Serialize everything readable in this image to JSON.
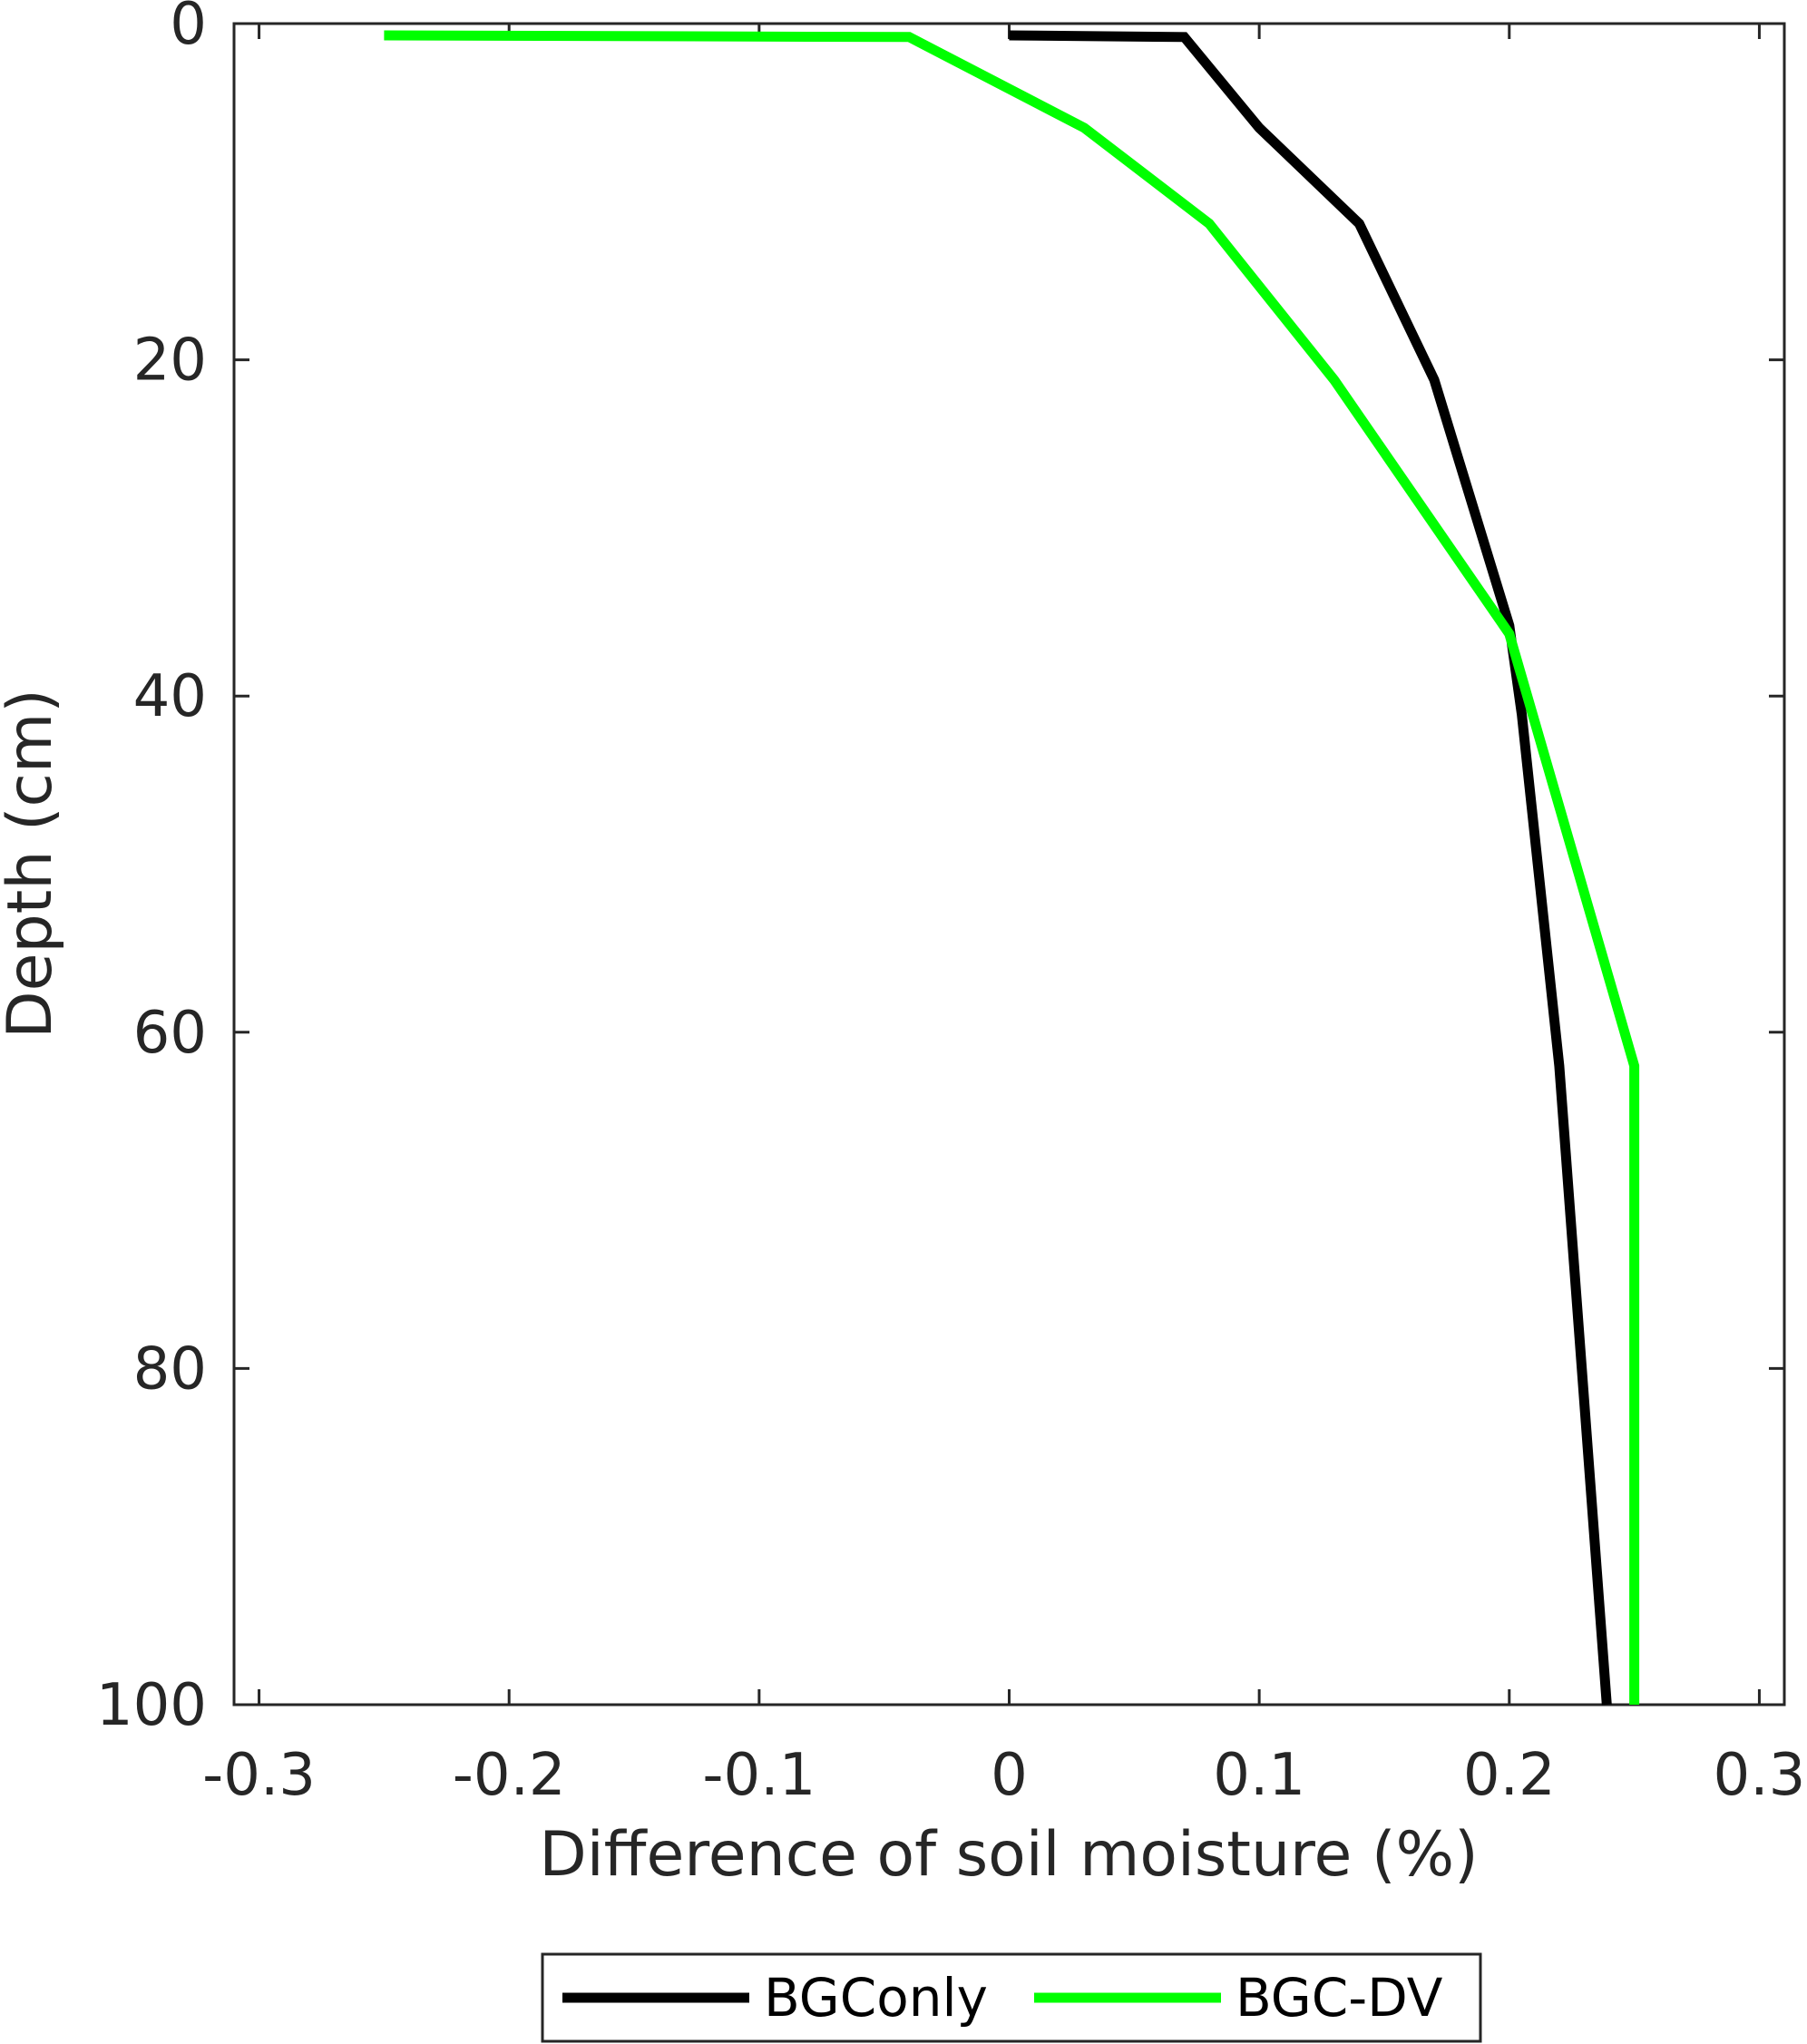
{
  "chart_data": {
    "type": "line",
    "title": "",
    "xlabel": "Difference of soil moisture (%)",
    "ylabel": "Depth (cm)",
    "xlim": [
      -0.31,
      0.31
    ],
    "ylim": [
      0,
      100
    ],
    "y_reversed": true,
    "xticks": [
      "-0.3",
      "-0.2",
      "-0.1",
      "0",
      "0.1",
      "0.2",
      "0.3"
    ],
    "xtick_values": [
      -0.3,
      -0.2,
      -0.1,
      0,
      0.1,
      0.2,
      0.3
    ],
    "yticks": [
      "0",
      "20",
      "40",
      "60",
      "80",
      "100"
    ],
    "ytick_values": [
      0,
      20,
      40,
      60,
      80,
      100
    ],
    "grid": false,
    "legend_position": "bottom-center-outside",
    "series": [
      {
        "name": "BGConly",
        "color": "#000000",
        "points": [
          [
            0.0,
            0.7
          ],
          [
            0.07,
            0.8
          ],
          [
            0.1,
            6.2
          ],
          [
            0.14,
            11.9
          ],
          [
            0.17,
            21.2
          ],
          [
            0.2,
            35.8
          ],
          [
            0.205,
            41.1
          ],
          [
            0.22,
            62.0
          ],
          [
            0.239,
            100
          ]
        ]
      },
      {
        "name": "BGC-DV",
        "color": "#00ff00",
        "points": [
          [
            -0.25,
            0.7
          ],
          [
            -0.04,
            0.8
          ],
          [
            0.03,
            6.2
          ],
          [
            0.08,
            11.9
          ],
          [
            0.13,
            21.2
          ],
          [
            0.2,
            36.3
          ],
          [
            0.25,
            62.0
          ],
          [
            0.25,
            100
          ]
        ]
      }
    ]
  }
}
